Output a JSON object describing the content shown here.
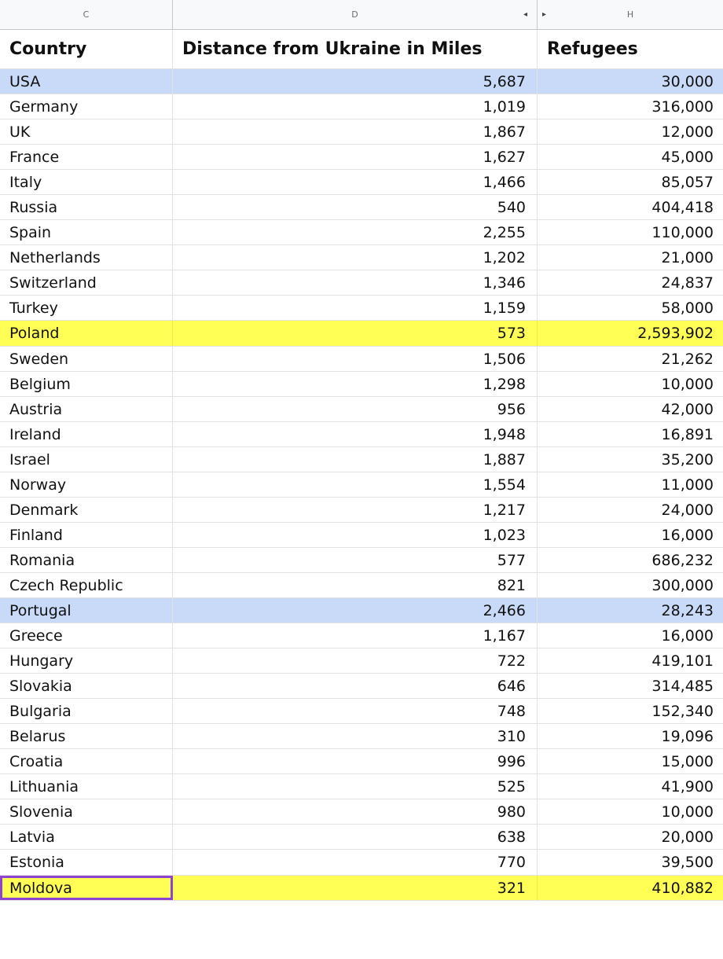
{
  "column_headers": {
    "c": "C",
    "d": "D",
    "h": "H",
    "hidden_left_marker": "◂",
    "hidden_right_marker": "▸"
  },
  "table": {
    "headers": {
      "country": "Country",
      "distance": "Distance from Ukraine in Miles",
      "refugees": "Refugees"
    },
    "rows": [
      {
        "country": "USA",
        "distance": "5,687",
        "refugees": "30,000",
        "highlight": "blue"
      },
      {
        "country": "Germany",
        "distance": "1,019",
        "refugees": "316,000",
        "highlight": ""
      },
      {
        "country": "UK",
        "distance": "1,867",
        "refugees": "12,000",
        "highlight": ""
      },
      {
        "country": "France",
        "distance": "1,627",
        "refugees": "45,000",
        "highlight": ""
      },
      {
        "country": "Italy",
        "distance": "1,466",
        "refugees": "85,057",
        "highlight": ""
      },
      {
        "country": "Russia",
        "distance": "540",
        "refugees": "404,418",
        "highlight": ""
      },
      {
        "country": "Spain",
        "distance": "2,255",
        "refugees": "110,000",
        "highlight": ""
      },
      {
        "country": "Netherlands",
        "distance": "1,202",
        "refugees": "21,000",
        "highlight": ""
      },
      {
        "country": "Switzerland",
        "distance": "1,346",
        "refugees": "24,837",
        "highlight": ""
      },
      {
        "country": "Turkey",
        "distance": "1,159",
        "refugees": "58,000",
        "highlight": ""
      },
      {
        "country": "Poland",
        "distance": "573",
        "refugees": "2,593,902",
        "highlight": "yellow"
      },
      {
        "country": "Sweden",
        "distance": "1,506",
        "refugees": "21,262",
        "highlight": ""
      },
      {
        "country": "Belgium",
        "distance": "1,298",
        "refugees": "10,000",
        "highlight": ""
      },
      {
        "country": "Austria",
        "distance": "956",
        "refugees": "42,000",
        "highlight": ""
      },
      {
        "country": "Ireland",
        "distance": "1,948",
        "refugees": "16,891",
        "highlight": ""
      },
      {
        "country": "Israel",
        "distance": "1,887",
        "refugees": "35,200",
        "highlight": ""
      },
      {
        "country": "Norway",
        "distance": "1,554",
        "refugees": "11,000",
        "highlight": ""
      },
      {
        "country": "Denmark",
        "distance": "1,217",
        "refugees": "24,000",
        "highlight": ""
      },
      {
        "country": "Finland",
        "distance": "1,023",
        "refugees": "16,000",
        "highlight": ""
      },
      {
        "country": "Romania",
        "distance": "577",
        "refugees": "686,232",
        "highlight": ""
      },
      {
        "country": "Czech Republic",
        "distance": "821",
        "refugees": "300,000",
        "highlight": ""
      },
      {
        "country": "Portugal",
        "distance": "2,466",
        "refugees": "28,243",
        "highlight": "blue"
      },
      {
        "country": "Greece",
        "distance": "1,167",
        "refugees": "16,000",
        "highlight": ""
      },
      {
        "country": "Hungary",
        "distance": "722",
        "refugees": "419,101",
        "highlight": ""
      },
      {
        "country": "Slovakia",
        "distance": "646",
        "refugees": "314,485",
        "highlight": ""
      },
      {
        "country": "Bulgaria",
        "distance": "748",
        "refugees": "152,340",
        "highlight": ""
      },
      {
        "country": "Belarus",
        "distance": "310",
        "refugees": "19,096",
        "highlight": ""
      },
      {
        "country": "Croatia",
        "distance": "996",
        "refugees": "15,000",
        "highlight": ""
      },
      {
        "country": "Lithuania",
        "distance": "525",
        "refugees": "41,900",
        "highlight": ""
      },
      {
        "country": "Slovenia",
        "distance": "980",
        "refugees": "10,000",
        "highlight": ""
      },
      {
        "country": "Latvia",
        "distance": "638",
        "refugees": "20,000",
        "highlight": ""
      },
      {
        "country": "Estonia",
        "distance": "770",
        "refugees": "39,500",
        "highlight": ""
      },
      {
        "country": "Moldova",
        "distance": "321",
        "refugees": "410,882",
        "highlight": "yellow",
        "selected": true
      }
    ]
  },
  "colors": {
    "blue_highlight": "#c9daf8",
    "yellow_highlight": "#ffff55",
    "selection_border": "#8e44d1"
  }
}
